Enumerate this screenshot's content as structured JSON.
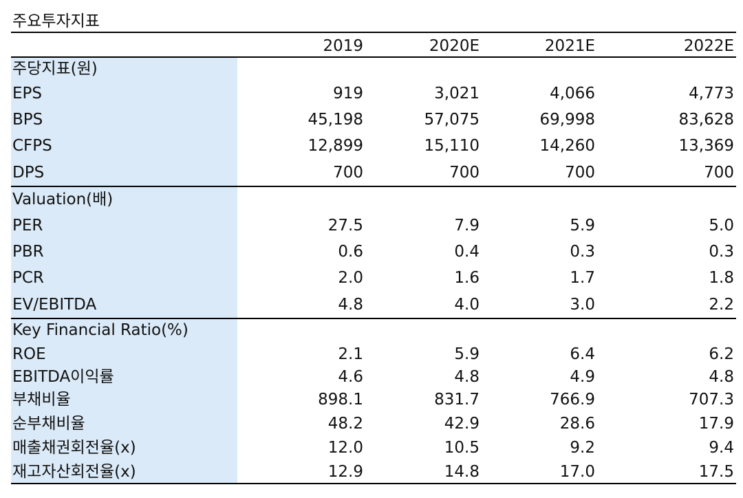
{
  "title": "주요투자지표",
  "table": {
    "columns": [
      "2019",
      "2020E",
      "2021E",
      "2022E"
    ],
    "sections": [
      {
        "header": "주당지표(원)",
        "rows": [
          {
            "label": "EPS",
            "values": [
              "919",
              "3,021",
              "4,066",
              "4,773"
            ]
          },
          {
            "label": "BPS",
            "values": [
              "45,198",
              "57,075",
              "69,998",
              "83,628"
            ]
          },
          {
            "label": "CFPS",
            "values": [
              "12,899",
              "15,110",
              "14,260",
              "13,369"
            ]
          },
          {
            "label": "DPS",
            "values": [
              "700",
              "700",
              "700",
              "700"
            ]
          }
        ]
      },
      {
        "header": "Valuation(배)",
        "rows": [
          {
            "label": "PER",
            "values": [
              "27.5",
              "7.9",
              "5.9",
              "5.0"
            ]
          },
          {
            "label": "PBR",
            "values": [
              "0.6",
              "0.4",
              "0.3",
              "0.3"
            ]
          },
          {
            "label": "PCR",
            "values": [
              "2.0",
              "1.6",
              "1.7",
              "1.8"
            ]
          },
          {
            "label": "EV/EBITDA",
            "values": [
              "4.8",
              "4.0",
              "3.0",
              "2.2"
            ]
          }
        ]
      },
      {
        "header": "Key Financial Ratio(%)",
        "rows": [
          {
            "label": "ROE",
            "values": [
              "2.1",
              "5.9",
              "6.4",
              "6.2"
            ]
          },
          {
            "label": "EBITDA이익률",
            "values": [
              "4.6",
              "4.8",
              "4.9",
              "4.8"
            ]
          },
          {
            "label": "부채비율",
            "values": [
              "898.1",
              "831.7",
              "766.9",
              "707.3"
            ]
          },
          {
            "label": "순부채비율",
            "values": [
              "48.2",
              "42.9",
              "28.6",
              "17.9"
            ]
          },
          {
            "label": "매출채권회전율(x)",
            "values": [
              "12.0",
              "10.5",
              "9.2",
              "9.4"
            ]
          },
          {
            "label": "재고자산회전율(x)",
            "values": [
              "12.9",
              "14.8",
              "17.0",
              "17.5"
            ]
          }
        ]
      }
    ]
  }
}
